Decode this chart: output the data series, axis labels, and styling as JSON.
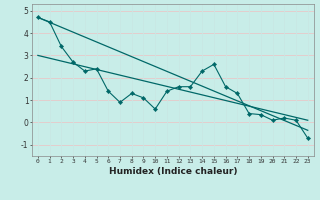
{
  "xlabel": "Humidex (Indice chaleur)",
  "bg_color": "#c8ede8",
  "grid_color_h": "#e8c8c8",
  "grid_color_v": "#c8e8e4",
  "line_color": "#006868",
  "xlim": [
    -0.5,
    23.5
  ],
  "ylim": [
    -1.5,
    5.3
  ],
  "yticks": [
    -1,
    0,
    1,
    2,
    3,
    4,
    5
  ],
  "xticks": [
    0,
    1,
    2,
    3,
    4,
    5,
    6,
    7,
    8,
    9,
    10,
    11,
    12,
    13,
    14,
    15,
    16,
    17,
    18,
    19,
    20,
    21,
    22,
    23
  ],
  "data_line": [
    4.7,
    4.5,
    3.4,
    2.7,
    2.3,
    2.4,
    1.4,
    0.9,
    1.3,
    1.1,
    0.6,
    1.4,
    1.6,
    1.6,
    2.3,
    2.6,
    1.6,
    1.3,
    0.4,
    0.35,
    0.1,
    0.2,
    0.1,
    -0.7
  ],
  "trend1_start": 4.7,
  "trend1_end": -0.35,
  "trend2_start": 3.0,
  "trend2_end": 0.1
}
